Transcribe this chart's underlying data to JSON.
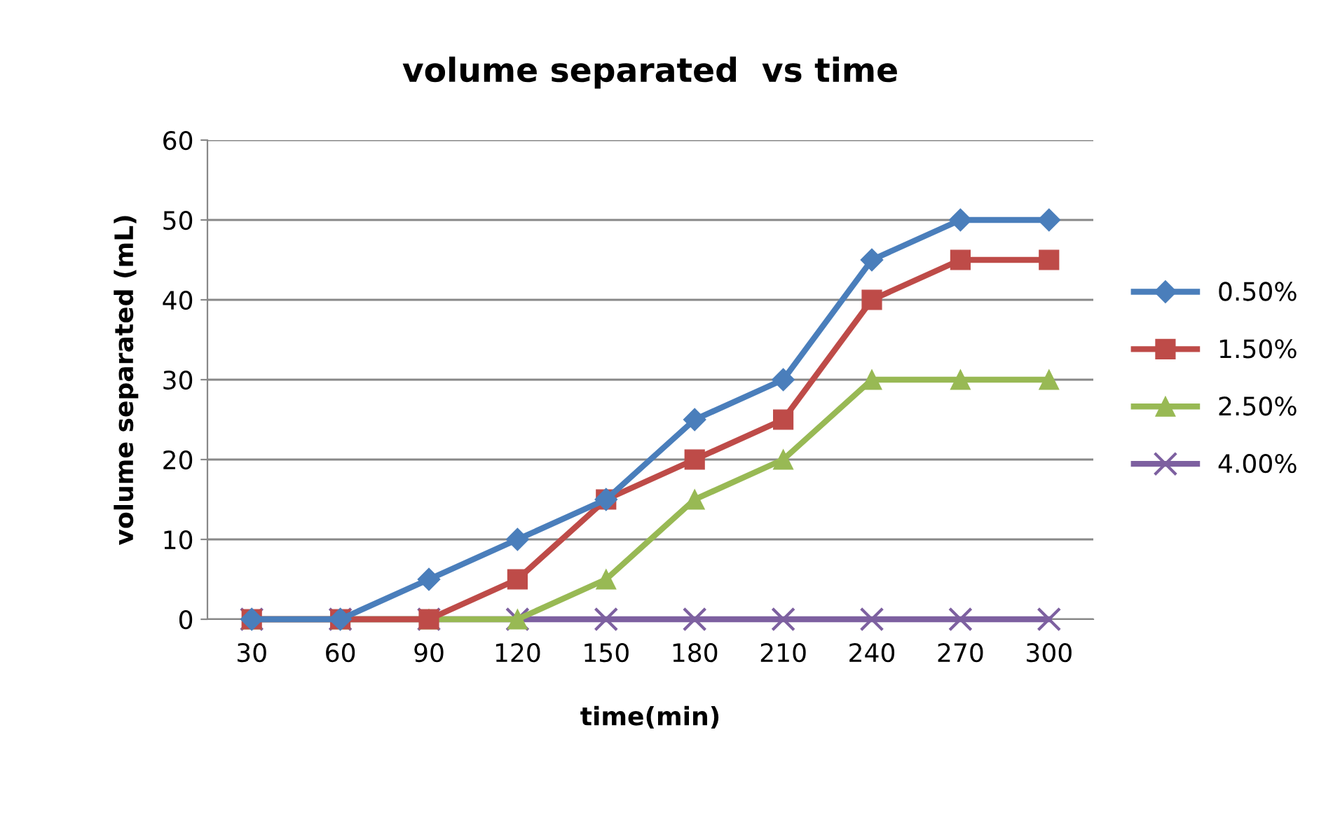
{
  "chart_data": {
    "type": "line",
    "title": "volume separated  vs time",
    "xlabel": "time(min)",
    "ylabel": "volume separated (mL)",
    "categories": [
      "30",
      "60",
      "90",
      "120",
      "150",
      "180",
      "210",
      "240",
      "270",
      "300"
    ],
    "series": [
      {
        "name": "0.50%",
        "color": "#4a7ebb",
        "marker": "diamond",
        "values": [
          0,
          0,
          5,
          10,
          15,
          25,
          30,
          45,
          50,
          50
        ]
      },
      {
        "name": "1.50%",
        "color": "#be4b48",
        "marker": "square",
        "values": [
          0,
          0,
          0,
          5,
          15,
          20,
          25,
          40,
          45,
          45
        ]
      },
      {
        "name": "2.50%",
        "color": "#98b954",
        "marker": "triangle",
        "values": [
          0,
          0,
          0,
          0,
          5,
          15,
          20,
          30,
          30,
          30
        ]
      },
      {
        "name": "4.00%",
        "color": "#7d60a0",
        "marker": "cross",
        "values": [
          0,
          0,
          0,
          0,
          0,
          0,
          0,
          0,
          0,
          0
        ]
      }
    ],
    "ylim": [
      0,
      60
    ],
    "yticks": [
      0,
      10,
      20,
      30,
      40,
      50,
      60
    ],
    "grid": "y",
    "legend": "right",
    "line_style": "solid"
  }
}
